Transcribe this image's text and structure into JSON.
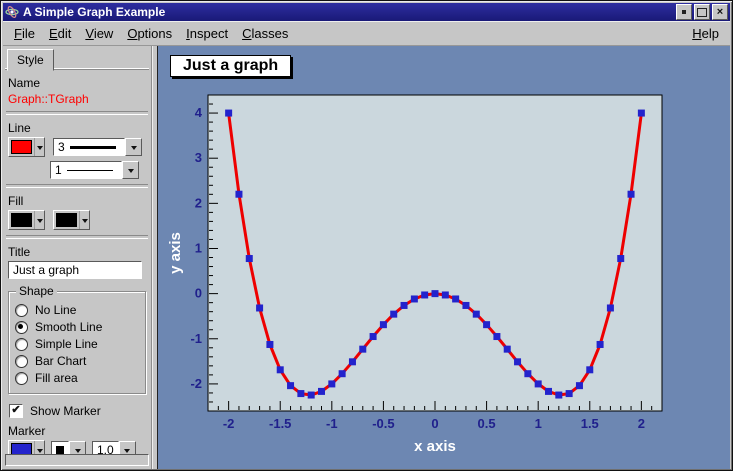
{
  "window": {
    "title": "A Simple Graph Example"
  },
  "menu": {
    "items": [
      "File",
      "Edit",
      "View",
      "Options",
      "Inspect",
      "Classes"
    ],
    "help": "Help"
  },
  "editor": {
    "tab": "Style",
    "name_label": "Name",
    "object_name": "Graph::TGraph",
    "line_label": "Line",
    "line_width": "3",
    "line_style": "1",
    "fill_label": "Fill",
    "title_label": "Title",
    "title_value": "Just a graph",
    "shape": {
      "label": "Shape",
      "options": [
        "No Line",
        "Smooth Line",
        "Simple Line",
        "Bar Chart",
        "Fill area"
      ],
      "selected": "Smooth Line"
    },
    "show_marker_label": "Show Marker",
    "show_marker_checked": true,
    "marker_label": "Marker",
    "marker_size": "1.0",
    "colors": {
      "line": "#ff0000",
      "fill": "#000000",
      "pattern": "#000000",
      "marker": "#2323cc"
    }
  },
  "canvas": {
    "graph_title": "Just a graph"
  },
  "chart_data": {
    "type": "line",
    "title": "Just a graph",
    "xlabel": "x axis",
    "ylabel": "y axis",
    "xlim": [
      -2.2,
      2.2
    ],
    "ylim": [
      -2.6,
      4.4
    ],
    "x_ticks": [
      "-2",
      "-1.5",
      "-1",
      "-0.5",
      "0",
      "0.5",
      "1",
      "1.5",
      "2"
    ],
    "y_ticks": [
      "-2",
      "-1",
      "0",
      "1",
      "2",
      "3",
      "4"
    ],
    "grid": false,
    "legend": "none",
    "line_color": "#ee0000",
    "marker_color": "#2323cc",
    "frame_fill": "#cbd7dd",
    "canvas_color": "#6d87b2",
    "tick_label_color": "#20208c",
    "axis_title_color": "#ffffff",
    "points": [
      [
        -2.0,
        4.0
      ],
      [
        -1.9,
        2.2021
      ],
      [
        -1.8,
        0.7776
      ],
      [
        -1.7,
        -0.3179
      ],
      [
        -1.6,
        -1.1264
      ],
      [
        -1.5,
        -1.6875
      ],
      [
        -1.4,
        -2.0384
      ],
      [
        -1.3,
        -2.2139
      ],
      [
        -1.2,
        -2.2464
      ],
      [
        -1.1,
        -2.1659
      ],
      [
        -1.0,
        -2.0
      ],
      [
        -0.9,
        -1.7739
      ],
      [
        -0.8,
        -1.5104
      ],
      [
        -0.7,
        -1.2299
      ],
      [
        -0.6,
        -0.9504
      ],
      [
        -0.5,
        -0.6875
      ],
      [
        -0.4,
        -0.4544
      ],
      [
        -0.3,
        -0.2619
      ],
      [
        -0.2,
        -0.1184
      ],
      [
        -0.1,
        -0.0299
      ],
      [
        0.0,
        0.0
      ],
      [
        0.1,
        -0.0299
      ],
      [
        0.2,
        -0.1184
      ],
      [
        0.3,
        -0.2619
      ],
      [
        0.4,
        -0.4544
      ],
      [
        0.5,
        -0.6875
      ],
      [
        0.6,
        -0.9504
      ],
      [
        0.7,
        -1.2299
      ],
      [
        0.8,
        -1.5104
      ],
      [
        0.9,
        -1.7739
      ],
      [
        1.0,
        -2.0
      ],
      [
        1.1,
        -2.1659
      ],
      [
        1.2,
        -2.2464
      ],
      [
        1.3,
        -2.2139
      ],
      [
        1.4,
        -2.0384
      ],
      [
        1.5,
        -1.6875
      ],
      [
        1.6,
        -1.1264
      ],
      [
        1.7,
        -0.3179
      ],
      [
        1.8,
        0.7776
      ],
      [
        1.9,
        2.2021
      ],
      [
        2.0,
        4.0
      ]
    ]
  }
}
